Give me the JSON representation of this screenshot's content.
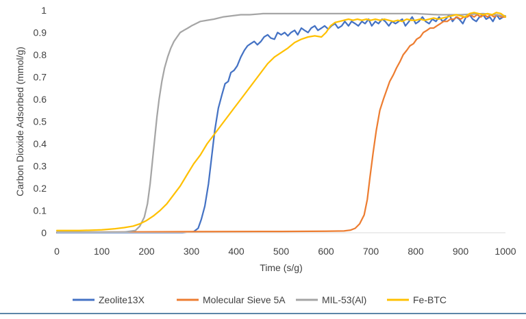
{
  "chart_data": {
    "type": "line",
    "title": "",
    "xlabel": "Time (s/g)",
    "ylabel": "Carbon Dioxide Adsorbed (mmol/g)",
    "xlim": [
      0,
      1000
    ],
    "ylim": [
      0,
      1
    ],
    "xticks": [
      0,
      100,
      200,
      300,
      400,
      500,
      600,
      700,
      800,
      900,
      1000
    ],
    "xtick_labels": [
      "0",
      "100",
      "200",
      "300",
      "400",
      "500",
      "600",
      "700",
      "800",
      "900",
      "1000"
    ],
    "yticks": [
      0,
      0.1,
      0.2,
      0.3,
      0.4,
      0.5,
      0.6,
      0.7,
      0.8,
      0.9,
      1
    ],
    "ytick_labels": [
      "0",
      "0.1",
      "0.2",
      "0.3",
      "0.4",
      "0.5",
      "0.6",
      "0.7",
      "0.8",
      "0.9",
      "1"
    ],
    "grid": false,
    "legend_position": "bottom",
    "series": [
      {
        "name": "Zeolite13X",
        "color": "#4472C4",
        "points": [
          [
            0,
            0
          ],
          [
            150,
            0
          ],
          [
            280,
            0
          ],
          [
            305,
            0.005
          ],
          [
            315,
            0.02
          ],
          [
            322,
            0.06
          ],
          [
            330,
            0.12
          ],
          [
            338,
            0.22
          ],
          [
            345,
            0.34
          ],
          [
            352,
            0.46
          ],
          [
            360,
            0.56
          ],
          [
            368,
            0.62
          ],
          [
            375,
            0.67
          ],
          [
            382,
            0.68
          ],
          [
            388,
            0.72
          ],
          [
            395,
            0.73
          ],
          [
            402,
            0.75
          ],
          [
            410,
            0.79
          ],
          [
            418,
            0.82
          ],
          [
            425,
            0.84
          ],
          [
            432,
            0.85
          ],
          [
            440,
            0.86
          ],
          [
            447,
            0.845
          ],
          [
            455,
            0.86
          ],
          [
            462,
            0.88
          ],
          [
            470,
            0.89
          ],
          [
            477,
            0.875
          ],
          [
            485,
            0.87
          ],
          [
            492,
            0.9
          ],
          [
            500,
            0.89
          ],
          [
            508,
            0.9
          ],
          [
            515,
            0.885
          ],
          [
            522,
            0.9
          ],
          [
            530,
            0.91
          ],
          [
            537,
            0.89
          ],
          [
            545,
            0.92
          ],
          [
            552,
            0.91
          ],
          [
            560,
            0.9
          ],
          [
            567,
            0.92
          ],
          [
            575,
            0.93
          ],
          [
            582,
            0.91
          ],
          [
            590,
            0.92
          ],
          [
            597,
            0.93
          ],
          [
            605,
            0.915
          ],
          [
            612,
            0.93
          ],
          [
            620,
            0.94
          ],
          [
            627,
            0.92
          ],
          [
            635,
            0.93
          ],
          [
            642,
            0.95
          ],
          [
            650,
            0.93
          ],
          [
            657,
            0.95
          ],
          [
            665,
            0.94
          ],
          [
            672,
            0.93
          ],
          [
            680,
            0.95
          ],
          [
            687,
            0.94
          ],
          [
            695,
            0.96
          ],
          [
            702,
            0.93
          ],
          [
            710,
            0.95
          ],
          [
            717,
            0.94
          ],
          [
            725,
            0.96
          ],
          [
            732,
            0.95
          ],
          [
            740,
            0.93
          ],
          [
            747,
            0.95
          ],
          [
            755,
            0.94
          ],
          [
            762,
            0.95
          ],
          [
            770,
            0.96
          ],
          [
            777,
            0.93
          ],
          [
            785,
            0.95
          ],
          [
            792,
            0.97
          ],
          [
            800,
            0.94
          ],
          [
            807,
            0.95
          ],
          [
            815,
            0.97
          ],
          [
            822,
            0.95
          ],
          [
            830,
            0.94
          ],
          [
            837,
            0.96
          ],
          [
            845,
            0.95
          ],
          [
            852,
            0.97
          ],
          [
            860,
            0.95
          ],
          [
            867,
            0.96
          ],
          [
            875,
            0.98
          ],
          [
            882,
            0.95
          ],
          [
            890,
            0.97
          ],
          [
            897,
            0.96
          ],
          [
            905,
            0.94
          ],
          [
            912,
            0.97
          ],
          [
            920,
            0.98
          ],
          [
            927,
            0.96
          ],
          [
            935,
            0.95
          ],
          [
            942,
            0.97
          ],
          [
            950,
            0.98
          ],
          [
            957,
            0.96
          ],
          [
            965,
            0.97
          ],
          [
            972,
            0.95
          ],
          [
            980,
            0.98
          ],
          [
            987,
            0.96
          ],
          [
            995,
            0.97
          ],
          [
            1000,
            0.97
          ]
        ]
      },
      {
        "name": "Molecular Sieve 5A",
        "color": "#ED7D31",
        "points": [
          [
            0,
            0.002
          ],
          [
            300,
            0.005
          ],
          [
            500,
            0.006
          ],
          [
            600,
            0.007
          ],
          [
            640,
            0.008
          ],
          [
            655,
            0.012
          ],
          [
            665,
            0.02
          ],
          [
            675,
            0.04
          ],
          [
            685,
            0.08
          ],
          [
            692,
            0.15
          ],
          [
            698,
            0.25
          ],
          [
            705,
            0.36
          ],
          [
            712,
            0.46
          ],
          [
            720,
            0.55
          ],
          [
            728,
            0.6
          ],
          [
            735,
            0.64
          ],
          [
            742,
            0.68
          ],
          [
            750,
            0.71
          ],
          [
            757,
            0.74
          ],
          [
            765,
            0.77
          ],
          [
            772,
            0.8
          ],
          [
            780,
            0.82
          ],
          [
            787,
            0.84
          ],
          [
            795,
            0.85
          ],
          [
            802,
            0.87
          ],
          [
            810,
            0.88
          ],
          [
            817,
            0.9
          ],
          [
            825,
            0.91
          ],
          [
            832,
            0.92
          ],
          [
            840,
            0.92
          ],
          [
            847,
            0.93
          ],
          [
            855,
            0.94
          ],
          [
            862,
            0.95
          ],
          [
            870,
            0.95
          ],
          [
            877,
            0.96
          ],
          [
            885,
            0.96
          ],
          [
            892,
            0.97
          ],
          [
            900,
            0.96
          ],
          [
            907,
            0.97
          ],
          [
            915,
            0.97
          ],
          [
            922,
            0.98
          ],
          [
            930,
            0.97
          ],
          [
            937,
            0.98
          ],
          [
            945,
            0.97
          ],
          [
            952,
            0.98
          ],
          [
            960,
            0.97
          ],
          [
            967,
            0.98
          ],
          [
            975,
            0.97
          ],
          [
            982,
            0.98
          ],
          [
            990,
            0.97
          ],
          [
            1000,
            0.97
          ]
        ]
      },
      {
        "name": "MIL-53(Al)",
        "color": "#A5A5A5",
        "points": [
          [
            0,
            0.003
          ],
          [
            150,
            0.003
          ],
          [
            175,
            0.01
          ],
          [
            185,
            0.03
          ],
          [
            195,
            0.07
          ],
          [
            202,
            0.13
          ],
          [
            208,
            0.22
          ],
          [
            213,
            0.32
          ],
          [
            218,
            0.42
          ],
          [
            223,
            0.52
          ],
          [
            228,
            0.6
          ],
          [
            234,
            0.68
          ],
          [
            240,
            0.74
          ],
          [
            247,
            0.79
          ],
          [
            254,
            0.83
          ],
          [
            261,
            0.86
          ],
          [
            268,
            0.88
          ],
          [
            275,
            0.9
          ],
          [
            283,
            0.91
          ],
          [
            292,
            0.92
          ],
          [
            300,
            0.93
          ],
          [
            310,
            0.94
          ],
          [
            320,
            0.95
          ],
          [
            335,
            0.955
          ],
          [
            350,
            0.96
          ],
          [
            370,
            0.97
          ],
          [
            390,
            0.975
          ],
          [
            410,
            0.98
          ],
          [
            430,
            0.98
          ],
          [
            460,
            0.985
          ],
          [
            500,
            0.985
          ],
          [
            550,
            0.985
          ],
          [
            600,
            0.985
          ],
          [
            650,
            0.985
          ],
          [
            700,
            0.985
          ],
          [
            750,
            0.985
          ],
          [
            800,
            0.985
          ],
          [
            850,
            0.98
          ],
          [
            900,
            0.98
          ],
          [
            950,
            0.985
          ],
          [
            1000,
            0.975
          ]
        ]
      },
      {
        "name": "Fe-BTC",
        "color": "#FFC000",
        "points": [
          [
            0,
            0.01
          ],
          [
            50,
            0.01
          ],
          [
            100,
            0.013
          ],
          [
            130,
            0.018
          ],
          [
            150,
            0.023
          ],
          [
            170,
            0.03
          ],
          [
            185,
            0.04
          ],
          [
            200,
            0.055
          ],
          [
            215,
            0.075
          ],
          [
            230,
            0.1
          ],
          [
            245,
            0.13
          ],
          [
            260,
            0.17
          ],
          [
            275,
            0.21
          ],
          [
            290,
            0.26
          ],
          [
            305,
            0.31
          ],
          [
            320,
            0.35
          ],
          [
            335,
            0.4
          ],
          [
            350,
            0.44
          ],
          [
            365,
            0.48
          ],
          [
            380,
            0.52
          ],
          [
            395,
            0.56
          ],
          [
            410,
            0.6
          ],
          [
            425,
            0.64
          ],
          [
            440,
            0.68
          ],
          [
            455,
            0.72
          ],
          [
            470,
            0.76
          ],
          [
            485,
            0.79
          ],
          [
            500,
            0.81
          ],
          [
            515,
            0.83
          ],
          [
            530,
            0.855
          ],
          [
            545,
            0.87
          ],
          [
            560,
            0.88
          ],
          [
            575,
            0.885
          ],
          [
            590,
            0.88
          ],
          [
            600,
            0.9
          ],
          [
            610,
            0.93
          ],
          [
            620,
            0.945
          ],
          [
            630,
            0.95
          ],
          [
            640,
            0.955
          ],
          [
            650,
            0.96
          ],
          [
            660,
            0.955
          ],
          [
            670,
            0.96
          ],
          [
            680,
            0.955
          ],
          [
            690,
            0.96
          ],
          [
            700,
            0.955
          ],
          [
            710,
            0.96
          ],
          [
            720,
            0.955
          ],
          [
            730,
            0.96
          ],
          [
            740,
            0.955
          ],
          [
            750,
            0.95
          ],
          [
            760,
            0.955
          ],
          [
            770,
            0.95
          ],
          [
            780,
            0.96
          ],
          [
            790,
            0.955
          ],
          [
            800,
            0.955
          ],
          [
            810,
            0.96
          ],
          [
            820,
            0.955
          ],
          [
            830,
            0.96
          ],
          [
            840,
            0.965
          ],
          [
            850,
            0.96
          ],
          [
            860,
            0.965
          ],
          [
            870,
            0.97
          ],
          [
            880,
            0.975
          ],
          [
            890,
            0.98
          ],
          [
            900,
            0.975
          ],
          [
            910,
            0.97
          ],
          [
            920,
            0.985
          ],
          [
            930,
            0.99
          ],
          [
            940,
            0.985
          ],
          [
            950,
            0.98
          ],
          [
            960,
            0.985
          ],
          [
            970,
            0.98
          ],
          [
            980,
            0.99
          ],
          [
            990,
            0.985
          ],
          [
            1000,
            0.97
          ]
        ]
      }
    ]
  }
}
